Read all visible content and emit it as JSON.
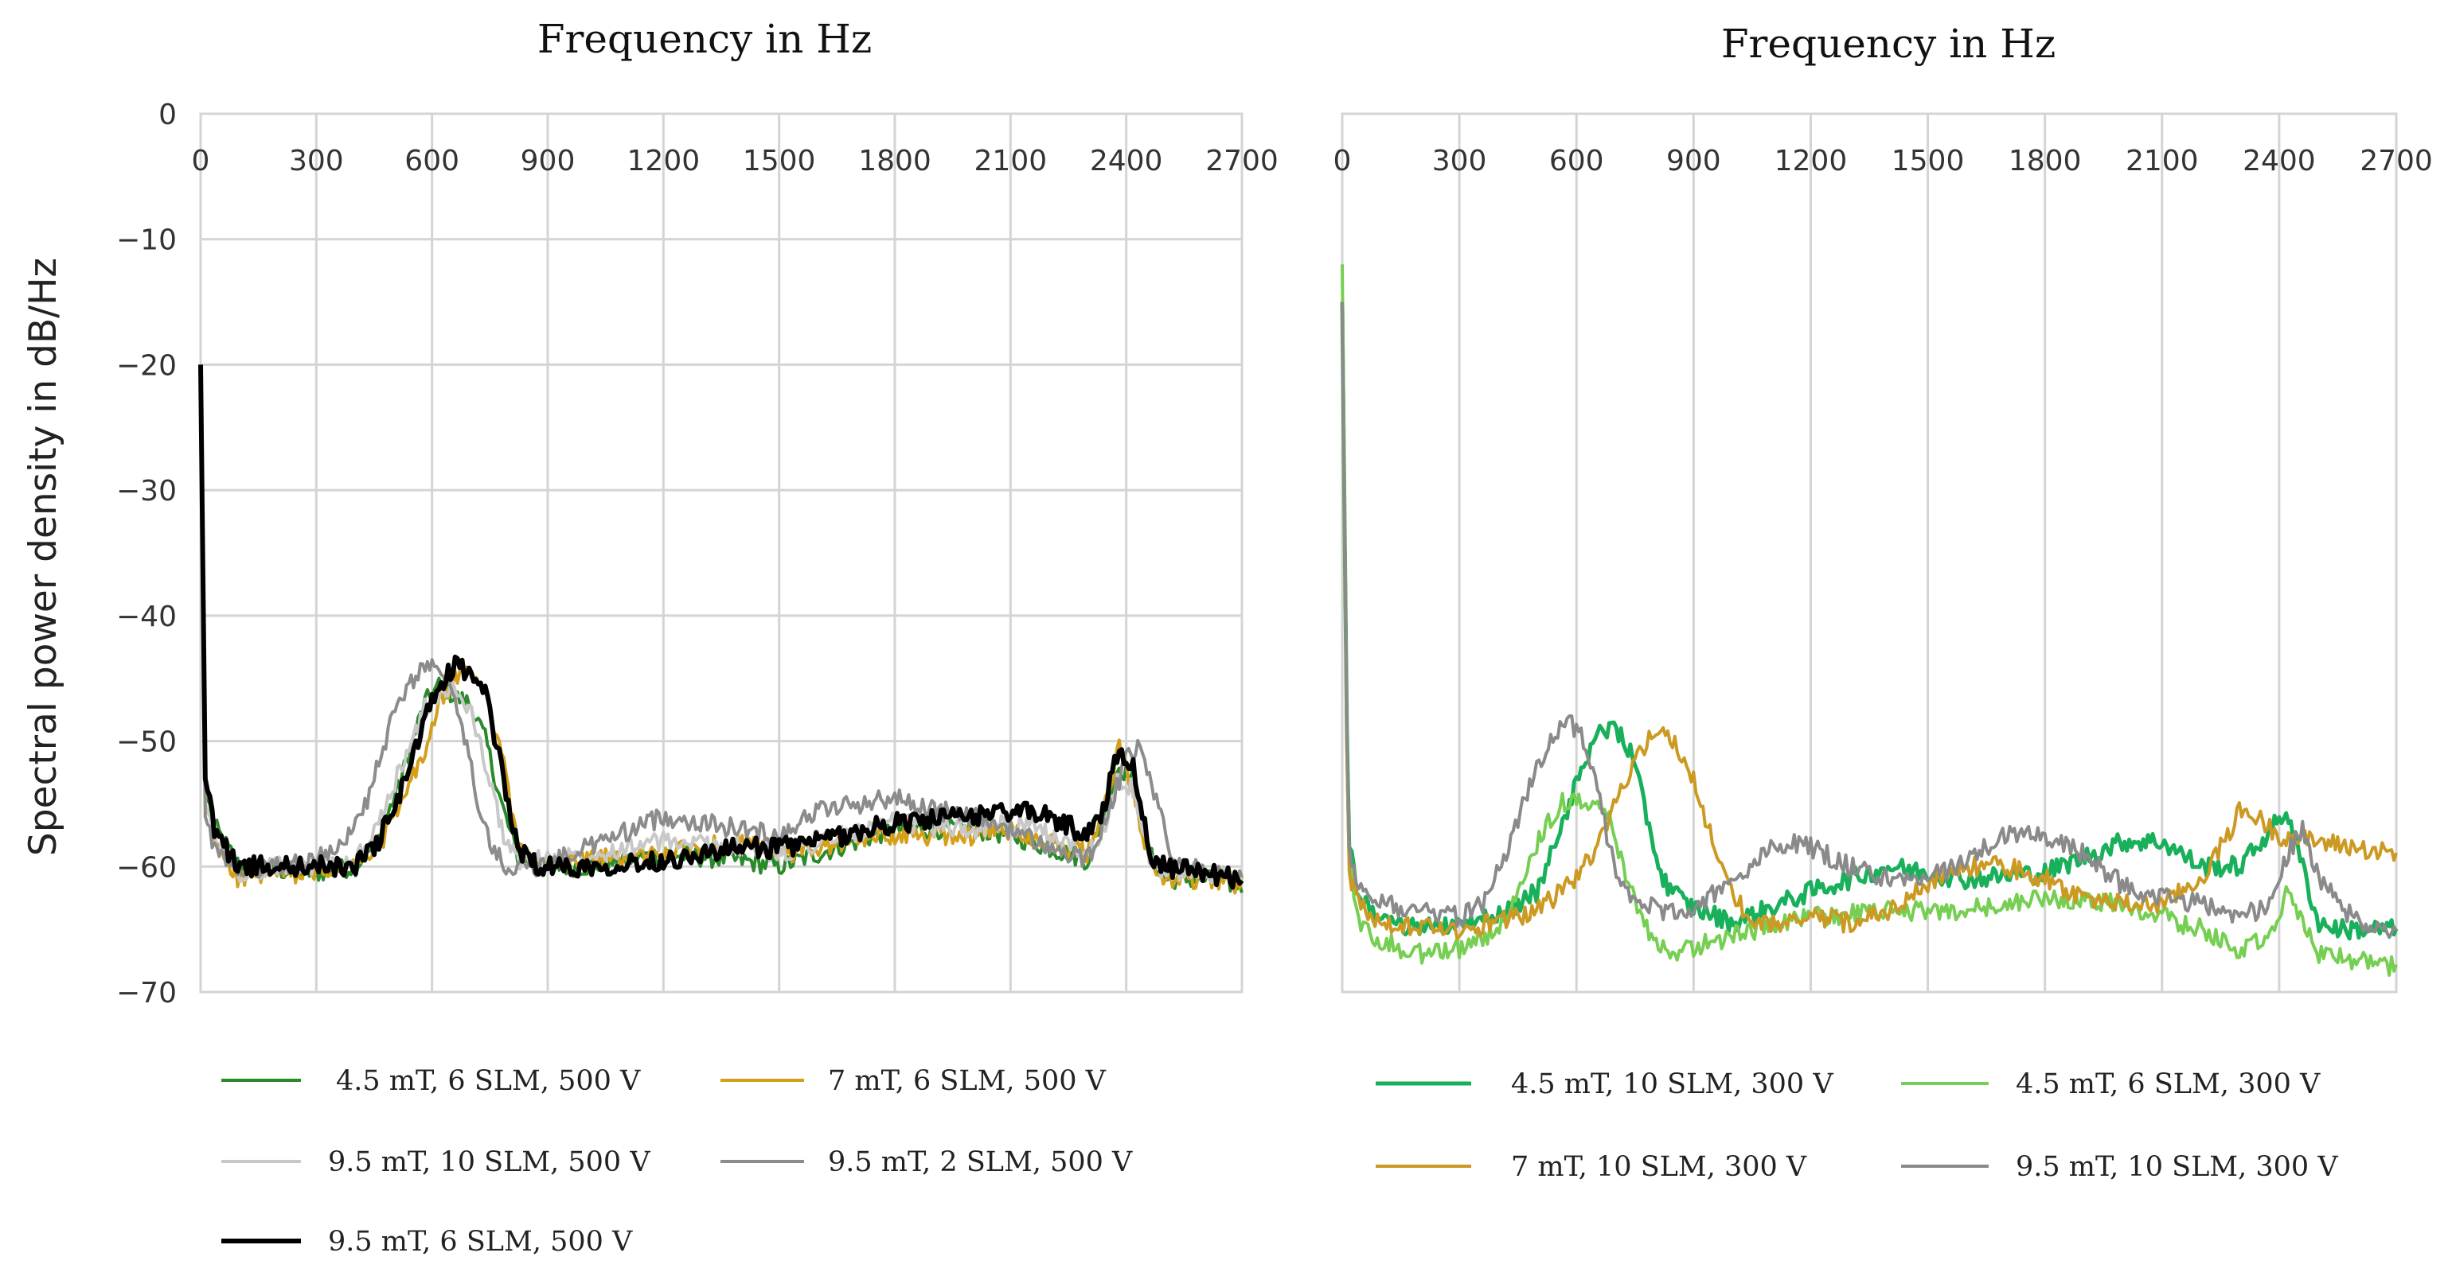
{
  "figure": {
    "y_axis_title": "Spectral power density in dB/Hz",
    "y_ticks": [
      "0",
      "−10",
      "−20",
      "−30",
      "−40",
      "−50",
      "−60",
      "−70"
    ]
  },
  "chart_data": [
    {
      "type": "line",
      "title": "",
      "xlabel": "Frequency in Hz",
      "ylabel": "Spectral power density in dB/Hz",
      "xlim": [
        0,
        2700
      ],
      "ylim": [
        -70,
        0
      ],
      "x_ticks": [
        "0",
        "300",
        "600",
        "900",
        "1200",
        "1500",
        "1800",
        "2100",
        "2400",
        "2700"
      ],
      "x_tick_position": "top",
      "grid": true,
      "legend": "bottom",
      "series": [
        {
          "name": "4.5 mT, 6 SLM, 500 V",
          "color": "#2a8a2a",
          "width": 4,
          "x": [
            0,
            12,
            40,
            100,
            200,
            300,
            400,
            460,
            520,
            580,
            620,
            660,
            700,
            740,
            780,
            820,
            880,
            1000,
            1200,
            1400,
            1500,
            1600,
            1800,
            2000,
            2100,
            2200,
            2300,
            2340,
            2380,
            2420,
            2460,
            2500,
            2600,
            2700
          ],
          "y": [
            -22,
            -54,
            -57,
            -60,
            -60.3,
            -60.5,
            -60,
            -58,
            -53,
            -47,
            -45.5,
            -46.5,
            -47,
            -50,
            -55,
            -59,
            -60,
            -60,
            -59,
            -59.5,
            -60,
            -59,
            -57,
            -57,
            -57.5,
            -58.5,
            -59.5,
            -56,
            -52,
            -53,
            -59,
            -61,
            -61,
            -61.5
          ]
        },
        {
          "name": "7 mT, 6 SLM, 500 V",
          "color": "#d4a019",
          "width": 4,
          "x": [
            0,
            12,
            40,
            100,
            200,
            300,
            400,
            460,
            520,
            580,
            620,
            660,
            700,
            740,
            780,
            820,
            880,
            1000,
            1200,
            1400,
            1500,
            1600,
            1800,
            2000,
            2100,
            2200,
            2300,
            2340,
            2380,
            2420,
            2460,
            2500,
            2600,
            2700
          ],
          "y": [
            -22,
            -55,
            -58,
            -61,
            -60.5,
            -60.5,
            -60,
            -58.5,
            -55,
            -51,
            -47,
            -45,
            -44.5,
            -46,
            -51,
            -58,
            -60,
            -59.5,
            -59,
            -58,
            -59,
            -58.5,
            -57.5,
            -57.5,
            -57,
            -58,
            -59,
            -56,
            -50.5,
            -54,
            -60,
            -61,
            -61,
            -61.5
          ]
        },
        {
          "name": "9.5 mT, 10 SLM, 500 V",
          "color": "#c8c8c8",
          "width": 4,
          "x": [
            0,
            12,
            40,
            100,
            200,
            300,
            400,
            460,
            520,
            580,
            620,
            660,
            700,
            740,
            780,
            820,
            880,
            1000,
            1200,
            1400,
            1500,
            1600,
            1800,
            2000,
            2100,
            2200,
            2300,
            2340,
            2380,
            2420,
            2460,
            2500,
            2600,
            2700
          ],
          "y": [
            -20,
            -55,
            -58,
            -60.5,
            -60,
            -60,
            -59.5,
            -57,
            -52,
            -47.5,
            -46,
            -46,
            -47.5,
            -52,
            -57,
            -59.5,
            -59.5,
            -59,
            -58,
            -58.5,
            -59,
            -58,
            -56.5,
            -57,
            -56.5,
            -57.5,
            -59,
            -57,
            -53,
            -54,
            -59.5,
            -60.5,
            -60.5,
            -61
          ]
        },
        {
          "name": "9.5 mT, 2 SLM, 500 V",
          "color": "#8c8c8c",
          "width": 4,
          "x": [
            0,
            12,
            40,
            100,
            200,
            300,
            400,
            440,
            500,
            560,
            600,
            640,
            680,
            720,
            760,
            800,
            880,
            1000,
            1200,
            1400,
            1500,
            1600,
            1700,
            1800,
            1900,
            2000,
            2100,
            2200,
            2300,
            2350,
            2400,
            2440,
            2480,
            2520,
            2600,
            2700
          ],
          "y": [
            -22,
            -56,
            -59,
            -60.5,
            -60,
            -59.5,
            -57,
            -54,
            -48,
            -44.5,
            -44,
            -45.5,
            -49,
            -55,
            -59,
            -60,
            -60,
            -58.5,
            -56,
            -57,
            -57.5,
            -55.5,
            -55,
            -54.5,
            -55.5,
            -56,
            -57,
            -58.5,
            -59.5,
            -56,
            -51.5,
            -50.5,
            -55,
            -59.5,
            -60,
            -60.5
          ]
        },
        {
          "name": "9.5 mT, 6 SLM, 500 V",
          "color": "#000000",
          "width": 6,
          "x": [
            0,
            12,
            40,
            100,
            200,
            300,
            400,
            460,
            520,
            580,
            620,
            660,
            700,
            740,
            780,
            820,
            880,
            1000,
            1200,
            1400,
            1500,
            1600,
            1800,
            2000,
            2100,
            2200,
            2300,
            2340,
            2380,
            2420,
            2460,
            2500,
            2600,
            2700
          ],
          "y": [
            -20,
            -53,
            -57.5,
            -60,
            -60,
            -60,
            -60,
            -58,
            -54,
            -48.5,
            -45.5,
            -44,
            -44.5,
            -46.5,
            -52,
            -58.5,
            -60,
            -60,
            -59.5,
            -58.5,
            -58.5,
            -58,
            -56.5,
            -56,
            -55.5,
            -56,
            -57.5,
            -55.5,
            -50.5,
            -52,
            -59,
            -60,
            -60.5,
            -61
          ]
        }
      ]
    },
    {
      "type": "line",
      "title": "",
      "xlabel": "Frequency in Hz",
      "ylabel": "Spectral power density in dB/Hz",
      "xlim": [
        0,
        2700
      ],
      "ylim": [
        -70,
        0
      ],
      "x_ticks": [
        "0",
        "300",
        "600",
        "900",
        "1200",
        "1500",
        "1800",
        "2100",
        "2400",
        "2700"
      ],
      "x_tick_position": "top",
      "grid": true,
      "legend": "bottom",
      "series": [
        {
          "name": "4.5 mT, 10 SLM, 300 V",
          "color": "#18b05a",
          "width": 5,
          "x": [
            0,
            15,
            40,
            100,
            200,
            300,
            400,
            500,
            560,
            620,
            660,
            700,
            740,
            780,
            820,
            880,
            1000,
            1200,
            1400,
            1600,
            1800,
            2000,
            2100,
            2200,
            2300,
            2380,
            2420,
            2460,
            2500,
            2560,
            2700
          ],
          "y": [
            -15,
            -58,
            -62,
            -64.5,
            -65,
            -64.5,
            -64,
            -62,
            -57,
            -51.5,
            -49.5,
            -49,
            -51,
            -56,
            -61,
            -63,
            -64.5,
            -62,
            -60,
            -61,
            -60.5,
            -58,
            -58,
            -60,
            -60,
            -57,
            -55.5,
            -60,
            -64.5,
            -65,
            -65
          ]
        },
        {
          "name": "4.5 mT, 6 SLM, 300 V",
          "color": "#76cf52",
          "width": 4,
          "x": [
            0,
            15,
            40,
            100,
            200,
            300,
            400,
            440,
            500,
            560,
            600,
            640,
            680,
            720,
            760,
            800,
            860,
            900,
            1000,
            1200,
            1400,
            1600,
            1800,
            2000,
            2100,
            2200,
            2300,
            2380,
            2420,
            2460,
            2500,
            2600,
            2700
          ],
          "y": [
            -12,
            -59,
            -64.5,
            -66,
            -67,
            -66.5,
            -65,
            -62.5,
            -58,
            -55,
            -54.5,
            -55,
            -56,
            -60,
            -64,
            -66,
            -67,
            -66.5,
            -65.5,
            -64,
            -63.5,
            -63.5,
            -62.5,
            -63,
            -64,
            -65,
            -67,
            -65,
            -62,
            -64,
            -67,
            -67.5,
            -68
          ]
        },
        {
          "name": "7 mT, 10 SLM, 300 V",
          "color": "#cc9a22",
          "width": 4,
          "x": [
            0,
            15,
            40,
            100,
            200,
            300,
            400,
            500,
            600,
            660,
            700,
            740,
            780,
            820,
            860,
            900,
            940,
            980,
            1040,
            1100,
            1200,
            1300,
            1400,
            1500,
            1600,
            1700,
            1800,
            1900,
            2000,
            2100,
            2200,
            2260,
            2300,
            2340,
            2400,
            2500,
            2600,
            2700
          ],
          "y": [
            -15,
            -60,
            -63,
            -64.5,
            -65,
            -65,
            -64.5,
            -63.5,
            -61,
            -58,
            -55,
            -52,
            -50,
            -49.5,
            -50.5,
            -53,
            -57,
            -61,
            -64,
            -64.5,
            -64,
            -64.5,
            -63.5,
            -61.5,
            -60,
            -60,
            -61,
            -62.5,
            -63,
            -63,
            -61,
            -58,
            -55.5,
            -56,
            -57.5,
            -58,
            -58.5,
            -59
          ]
        },
        {
          "name": "9.5 mT, 10 SLM, 300 V",
          "color": "#8a8a8a",
          "width": 4,
          "x": [
            0,
            15,
            40,
            100,
            200,
            300,
            360,
            420,
            480,
            540,
            580,
            620,
            660,
            700,
            760,
            820,
            900,
            1000,
            1100,
            1150,
            1200,
            1300,
            1400,
            1500,
            1600,
            1700,
            1800,
            1900,
            2000,
            2100,
            2200,
            2300,
            2380,
            2420,
            2460,
            2500,
            2600,
            2700
          ],
          "y": [
            -15,
            -58,
            -61.5,
            -63,
            -63.5,
            -64,
            -63,
            -59,
            -53.5,
            -49.5,
            -48.5,
            -50,
            -55,
            -60.5,
            -63,
            -63.5,
            -63.5,
            -61,
            -58.5,
            -58,
            -58.5,
            -60,
            -61,
            -61,
            -59.5,
            -57.5,
            -57.5,
            -59,
            -61.5,
            -62.5,
            -63,
            -64,
            -63,
            -59,
            -57,
            -61,
            -64.5,
            -65
          ]
        }
      ]
    }
  ]
}
